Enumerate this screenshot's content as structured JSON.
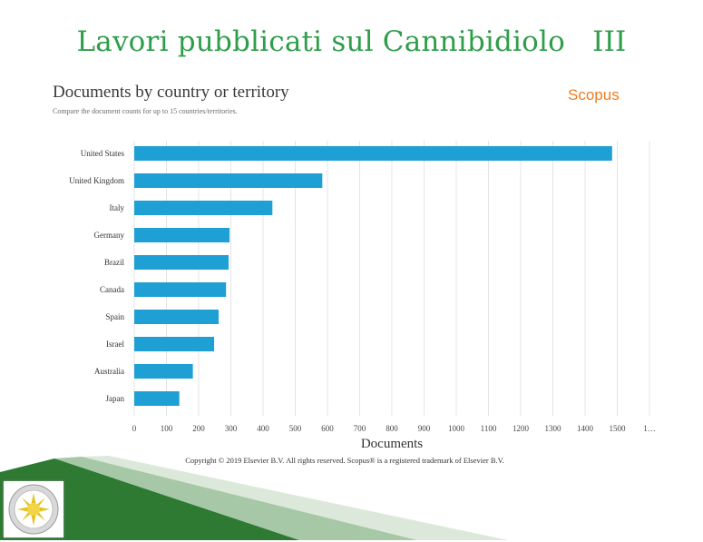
{
  "slide": {
    "title": "Lavori pubblicati sul Cannibidiolo   III"
  },
  "header": {
    "heading": "Documents by country or territory",
    "subheading": "Compare the document counts for up to 15 countries/territories.",
    "brand": "Scopus"
  },
  "footer": {
    "copyright": "Copyright © 2019 Elsevier B.V. All rights reserved. Scopus® is a registered trademark of Elsevier B.V."
  },
  "colors": {
    "bar": "#1ea0d4",
    "title": "#2e9e4a",
    "brand": "#f07c21",
    "decor": "#2f7a33"
  },
  "chart_data": {
    "type": "bar",
    "orientation": "horizontal",
    "title": "Documents by country or territory",
    "xlabel": "Documents",
    "ylabel": "",
    "categories": [
      "United States",
      "United Kingdom",
      "Italy",
      "Germany",
      "Brazil",
      "Canada",
      "Spain",
      "Israel",
      "Australia",
      "Japan"
    ],
    "values": [
      1484,
      584,
      429,
      296,
      293,
      285,
      262,
      248,
      182,
      140
    ],
    "xticks": [
      "0",
      "100",
      "200",
      "300",
      "400",
      "500",
      "600",
      "700",
      "800",
      "900",
      "1000",
      "1100",
      "1200",
      "1300",
      "1400",
      "1500",
      "1…"
    ],
    "xlim": [
      0,
      1600
    ],
    "grid": true
  }
}
